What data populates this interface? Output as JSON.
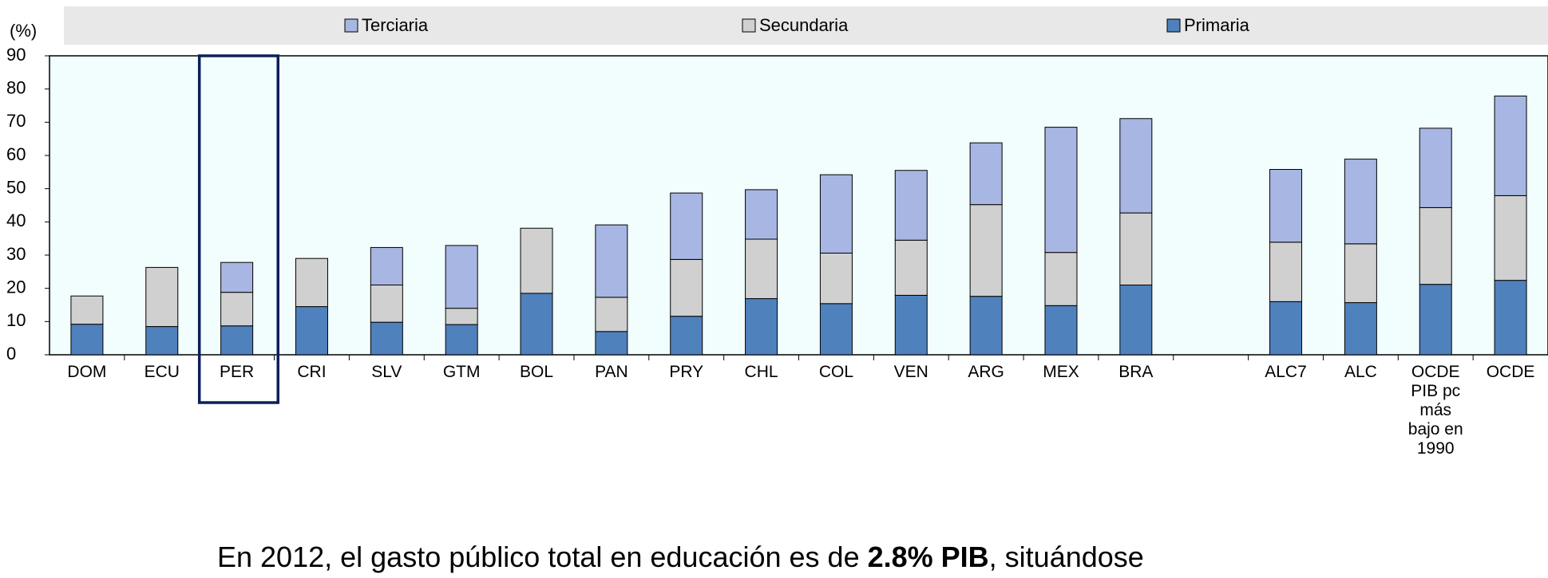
{
  "chart_data": {
    "type": "stacked_bar",
    "y_label": "(%)",
    "categories": [
      "DOM",
      "ECU",
      "PER",
      "CRI",
      "SLV",
      "GTM",
      "BOL",
      "PAN",
      "PRY",
      "CHL",
      "COL",
      "VEN",
      "ARG",
      "MEX",
      "BRA",
      null,
      "ALC7",
      "ALC",
      "OCDE\nPIB pc\nmás\nbajo en\n1990",
      "OCDE"
    ],
    "series": [
      {
        "name": "Primaria",
        "color": "#4f81bd",
        "values": [
          9.2,
          8.5,
          8.7,
          14.5,
          9.8,
          9.1,
          18.5,
          7.0,
          11.6,
          16.9,
          15.4,
          17.9,
          17.6,
          14.8,
          21.0,
          null,
          16.0,
          15.7,
          21.2,
          22.4
        ]
      },
      {
        "name": "Secundaria",
        "color": "#d0d0d0",
        "values": [
          8.5,
          17.8,
          10.1,
          14.5,
          11.2,
          4.9,
          19.6,
          10.3,
          17.1,
          17.9,
          15.2,
          16.6,
          27.6,
          16.0,
          21.7,
          null,
          17.9,
          17.7,
          23.1,
          25.5
        ]
      },
      {
        "name": "Terciaria",
        "color": "#a7b6e2",
        "values": [
          null,
          null,
          9.0,
          null,
          11.3,
          18.9,
          null,
          21.8,
          20.0,
          14.9,
          23.6,
          21.0,
          18.6,
          37.7,
          28.4,
          null,
          21.9,
          25.5,
          23.9,
          30.0
        ]
      }
    ],
    "ylim": [
      0,
      90
    ],
    "yticks": [
      0,
      10,
      20,
      30,
      40,
      50,
      60,
      70,
      80,
      90
    ],
    "grid": false,
    "caption": {
      "before": "En 2012, el gasto público total en educación es de ",
      "bold": "2.8% PIB",
      "after": ", situándose"
    }
  }
}
